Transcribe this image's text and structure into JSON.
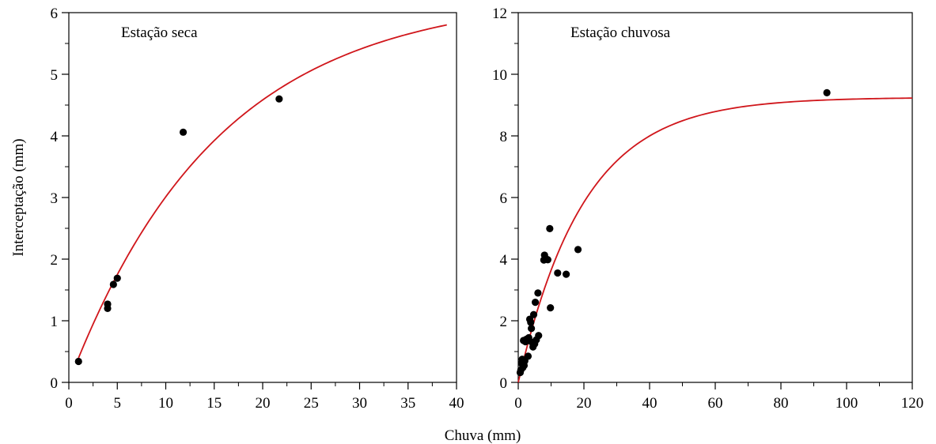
{
  "figure": {
    "xlabel": "Chuva (mm)",
    "ylabel": "Interceptação (mm)"
  },
  "colors": {
    "fit_line": "#d0161b",
    "points": "#000000",
    "axes": "#000000"
  },
  "chart_data": [
    {
      "type": "scatter",
      "title": "Estação seca",
      "xlabel": "",
      "ylabel": "",
      "xlim": [
        0,
        40
      ],
      "ylim": [
        0,
        6
      ],
      "x_ticks": [
        "0",
        "5",
        "10",
        "15",
        "20",
        "25",
        "30",
        "35",
        "40"
      ],
      "y_ticks": [
        "0",
        "1",
        "2",
        "3",
        "4",
        "5",
        "6"
      ],
      "grid": false,
      "series": [
        {
          "kind": "points",
          "x": [
            1.0,
            4.0,
            4.0,
            4.6,
            5.0,
            11.8,
            21.7
          ],
          "y": [
            0.34,
            1.2,
            1.27,
            1.59,
            1.69,
            4.06,
            4.6
          ]
        },
        {
          "kind": "fit",
          "model": "y = a*(1 - exp(-k*x))",
          "a": 6.3,
          "k": 0.065,
          "x_range": [
            1,
            39
          ]
        }
      ]
    },
    {
      "type": "scatter",
      "title": "Estação chuvosa",
      "xlabel": "",
      "ylabel": "",
      "xlim": [
        0,
        120
      ],
      "ylim": [
        0,
        12
      ],
      "x_ticks": [
        "0",
        "20",
        "40",
        "60",
        "80",
        "100",
        "120"
      ],
      "y_ticks": [
        "0",
        "2",
        "4",
        "6",
        "8",
        "10",
        "12"
      ],
      "grid": false,
      "series": [
        {
          "kind": "points",
          "x": [
            0.6,
            0.8,
            1.0,
            1.2,
            1.4,
            1.6,
            1.8,
            2.0,
            2.2,
            2.5,
            2.8,
            3.0,
            3.2,
            3.5,
            3.8,
            4.0,
            4.2,
            4.5,
            4.7,
            5.0,
            5.2,
            5.5,
            6.0,
            6.2,
            7.8,
            8.0,
            8.4,
            9.0,
            9.6,
            9.8,
            12.0,
            14.6,
            18.2,
            94.0
          ],
          "y": [
            0.32,
            0.4,
            0.62,
            0.75,
            0.48,
            1.36,
            0.55,
            0.7,
            1.32,
            1.4,
            1.35,
            0.85,
            1.45,
            2.05,
            1.95,
            1.75,
            1.3,
            1.15,
            2.2,
            1.25,
            2.6,
            1.38,
            2.9,
            1.52,
            3.97,
            4.13,
            4.02,
            3.98,
            4.99,
            2.42,
            3.55,
            3.51,
            4.31,
            9.4
          ]
        },
        {
          "kind": "fit",
          "model": "y = a*(1 - exp(-k*x))",
          "a": 9.25,
          "k": 0.05,
          "x_range": [
            0,
            120
          ]
        }
      ]
    }
  ]
}
